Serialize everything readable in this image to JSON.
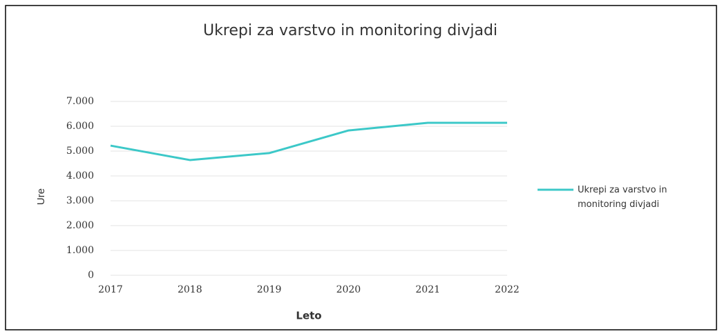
{
  "chart_data": {
    "type": "line",
    "title": "Ukrepi za varstvo in monitoring divjadi",
    "x_label": "Leto",
    "y_label": "Ure",
    "categories": [
      "2017",
      "2018",
      "2019",
      "2020",
      "2021",
      "2022"
    ],
    "series": [
      {
        "name": "Ukrepi za varstvo in monitoring divjadi",
        "color": "#3cc8c8",
        "values": [
          5220,
          4640,
          4920,
          5830,
          6140,
          6140
        ]
      }
    ],
    "ylim": [
      0,
      7000
    ],
    "yticks": [
      0,
      {
        "value": 1000,
        "label": "1.000"
      },
      {
        "value": 2000,
        "label": "2.000"
      },
      {
        "value": 3000,
        "label": "3.000"
      },
      {
        "value": 4000,
        "label": "4.000"
      },
      {
        "value": 5000,
        "label": "5.000"
      },
      {
        "value": 6000,
        "label": "6.000"
      },
      {
        "value": 7000,
        "label": "7.000"
      }
    ],
    "grid": true,
    "legend": "right"
  }
}
